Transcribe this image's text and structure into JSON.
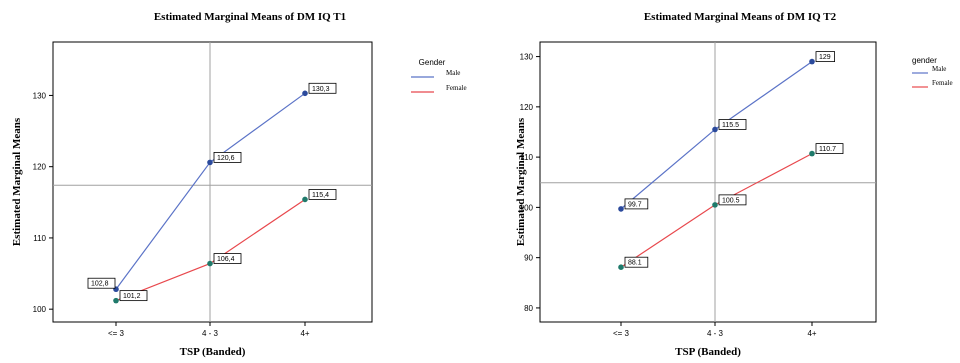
{
  "chart_data": [
    {
      "type": "line",
      "title": "Estimated Marginal Means of DM IQ T1",
      "xlabel": "TSP (Banded)",
      "ylabel": "Estimated Marginal Means",
      "categories": [
        "<= 3",
        "4 - 3",
        "4+"
      ],
      "yticks": [
        "100",
        "110",
        "120",
        "130"
      ],
      "ylim": [
        98.2,
        137.5
      ],
      "legend_title": "Gender",
      "legend_position": "right",
      "reference_lines": {
        "x_category": "4 - 3",
        "y": 117.4
      },
      "series": [
        {
          "name": "Male",
          "color": "#5b73c7",
          "marker": "#2b4a9c",
          "values": [
            102.8,
            120.6,
            130.3
          ],
          "labels": [
            "102,8",
            "120,6",
            "130,3"
          ]
        },
        {
          "name": "Female",
          "color": "#e8484d",
          "marker": "#1f7a6b",
          "values": [
            101.2,
            106.4,
            115.4
          ],
          "labels": [
            "101,2",
            "106,4",
            "115,4"
          ]
        }
      ]
    },
    {
      "type": "line",
      "title": "Estimated Marginal Means of DM IQ T2",
      "xlabel": "TSP (Banded)",
      "ylabel": "Estimated Marginal Means",
      "categories": [
        "<= 3",
        "4 - 3",
        "4+"
      ],
      "yticks": [
        "80",
        "90",
        "100",
        "110",
        "120",
        "130"
      ],
      "ylim": [
        77.2,
        132.9
      ],
      "legend_title": "gender",
      "legend_position": "right",
      "reference_lines": {
        "x_category": "4 - 3",
        "y": 104.9
      },
      "series": [
        {
          "name": "Male",
          "color": "#5b73c7",
          "marker": "#2b4a9c",
          "values": [
            99.7,
            115.5,
            129
          ],
          "labels": [
            "99.7",
            "115.5",
            "129"
          ]
        },
        {
          "name": "Female",
          "color": "#e8484d",
          "marker": "#1f7a6b",
          "values": [
            88.1,
            100.5,
            110.7
          ],
          "labels": [
            "88.1",
            "100.5",
            "110.7"
          ]
        }
      ]
    }
  ]
}
